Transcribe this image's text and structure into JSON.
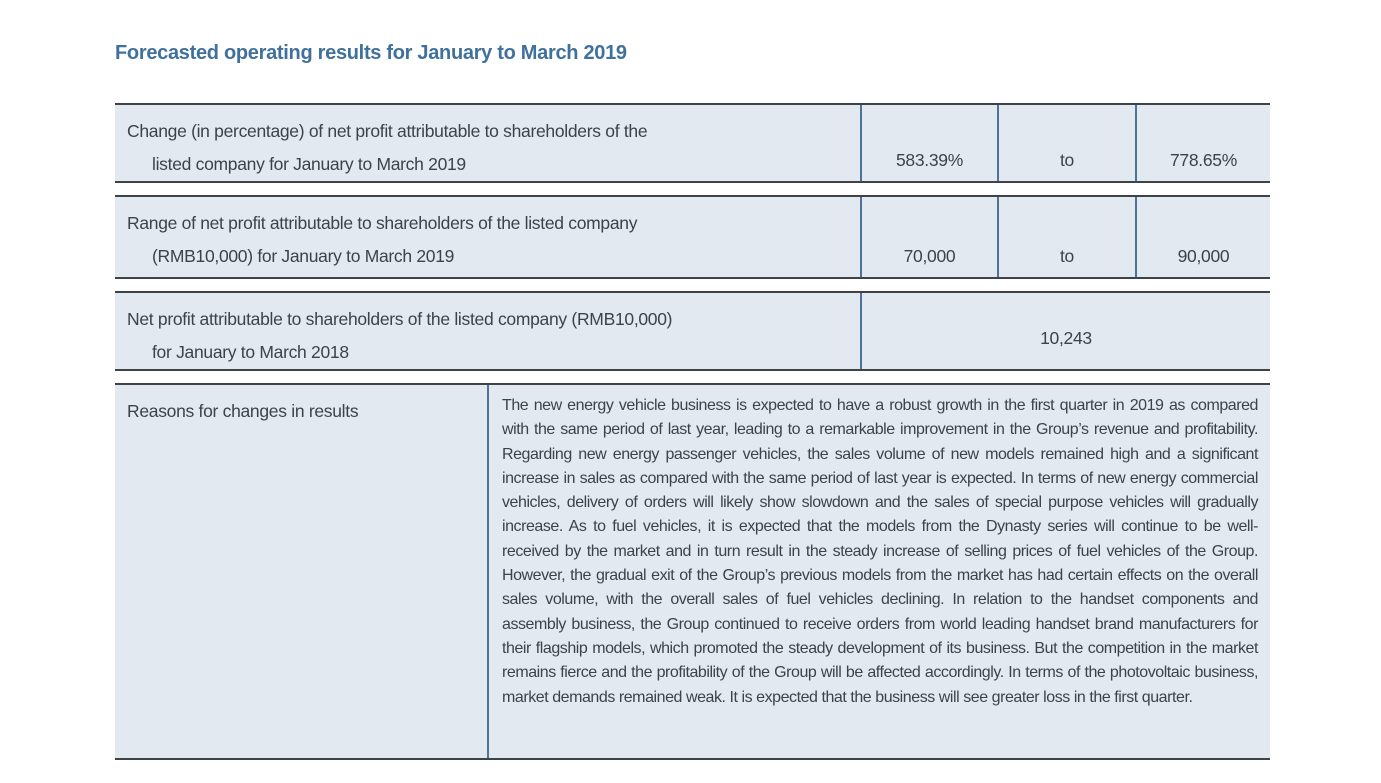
{
  "page": {
    "title": "Forecasted operating results for January to March 2019"
  },
  "table": {
    "rows": [
      {
        "label_line1": "Change (in percentage) of net profit attributable to shareholders of the",
        "label_line2": "listed company for January to March 2019",
        "value_low": "583.39%",
        "connector": "to",
        "value_high": "778.65%"
      },
      {
        "label_line1": "Range of net profit attributable to shareholders of the listed company",
        "label_line2": "(RMB10,000) for January to March 2019",
        "value_low": "70,000",
        "connector": "to",
        "value_high": "90,000"
      },
      {
        "label_line1": "Net profit attributable to shareholders of the listed company (RMB10,000)",
        "label_line2": "for January to March 2018",
        "value": "10,243"
      },
      {
        "label": "Reasons for changes in results",
        "text": "The new energy vehicle business is expected to have a robust growth in the first quarter in 2019 as compared with the same period of last year, leading to a remarkable improvement in the Group’s revenue and profitability. Regarding new energy passenger vehicles, the sales volume of new models remained high and a significant increase in sales as compared with the same period of last year is expected. In terms of new energy commercial vehicles, delivery of orders will likely show slowdown and the sales of special purpose vehicles will gradually increase. As to fuel vehicles, it is expected that the models from the Dynasty series will continue to be well-received by the market and in turn result in the steady increase of selling prices of fuel vehicles of the Group. However, the gradual exit of the Group’s previous models from the market has had certain effects on the overall sales volume, with the overall sales of fuel vehicles declining. In relation to the handset components and assembly business, the Group continued to receive orders from world leading handset brand manufacturers for their flagship models, which promoted the steady development of its business. But the competition in the market remains fierce and the profitability of the Group will be affected accordingly. In terms of the photovoltaic business, market demands remained weak. It is expected that the business will see greater loss in the first quarter."
      }
    ]
  },
  "colors": {
    "title": "#40719c",
    "cell_bg": "#e3e9f1",
    "border_h": "#3e4347",
    "border_v": "#4d7398",
    "text": "#3a434d"
  }
}
